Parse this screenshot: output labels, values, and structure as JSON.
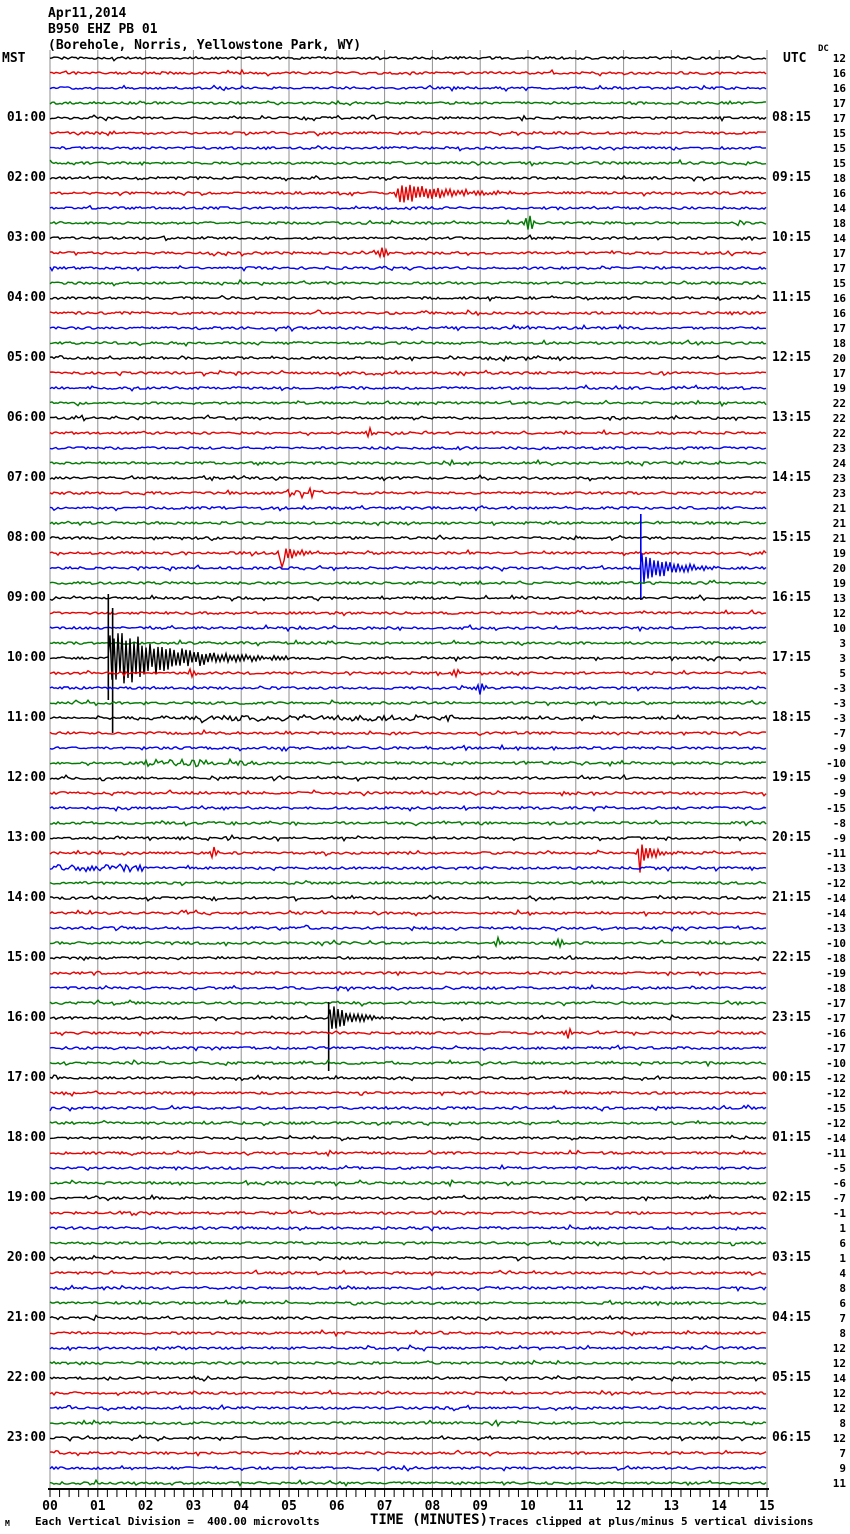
{
  "header": {
    "date": "Apr11,2014",
    "station": "B950 EHZ PB 01",
    "location": "(Borehole, Norris, Yellowstone Park, WY)"
  },
  "axes": {
    "left_tz": "MST",
    "right_tz": "UTC",
    "dc_header": "DC",
    "x_title": "TIME (MINUTES)",
    "x_ticks": [
      "00",
      "01",
      "02",
      "03",
      "04",
      "05",
      "06",
      "07",
      "08",
      "09",
      "10",
      "11",
      "12",
      "13",
      "14",
      "15"
    ]
  },
  "footer": {
    "corner_mark": "M",
    "scale_note": "Each Vertical Division =  400.00 microvolts",
    "clip_note": "Traces clipped at plus/minus 5 vertical divisions"
  },
  "chart_data": {
    "type": "line",
    "subtype": "helicorder-seismogram",
    "title": "B950 EHZ PB 01 (Borehole, Norris, Yellowstone Park, WY) Apr11,2014",
    "xlabel": "TIME (MINUTES)",
    "x_range_minutes": [
      0,
      15
    ],
    "rows": 96,
    "minutes_per_row": 15,
    "row_start_hour_mst": 0,
    "colors_cycle": [
      "#000000",
      "#e60000",
      "#0000ee",
      "#007a00"
    ],
    "grid_color": "#8f8f8f",
    "clip_divisions": 5,
    "left_labels": [
      "01:00",
      "02:00",
      "03:00",
      "04:00",
      "05:00",
      "06:00",
      "07:00",
      "08:00",
      "09:00",
      "10:00",
      "11:00",
      "12:00",
      "13:00",
      "14:00",
      "15:00",
      "16:00",
      "17:00",
      "18:00",
      "19:00",
      "20:00",
      "21:00",
      "22:00",
      "23:00"
    ],
    "right_labels": [
      "08:15",
      "09:15",
      "10:15",
      "11:15",
      "12:15",
      "13:15",
      "14:15",
      "15:15",
      "16:15",
      "17:15",
      "18:15",
      "19:15",
      "20:15",
      "21:15",
      "22:15",
      "23:15",
      "00:15",
      "01:15",
      "02:15",
      "03:15",
      "04:15",
      "05:15",
      "06:15"
    ],
    "dc_values": [
      12,
      16,
      16,
      17,
      17,
      15,
      15,
      15,
      18,
      16,
      14,
      18,
      14,
      17,
      17,
      15,
      16,
      16,
      17,
      18,
      20,
      17,
      19,
      22,
      22,
      22,
      23,
      24,
      23,
      23,
      21,
      21,
      21,
      19,
      20,
      19,
      13,
      12,
      10,
      3,
      3,
      5,
      -3,
      -3,
      -3,
      -7,
      -9,
      -10,
      -9,
      -9,
      -15,
      -8,
      -9,
      -11,
      -13,
      -12,
      -14,
      -14,
      -13,
      -10,
      -18,
      -19,
      -18,
      -17,
      -17,
      -16,
      -17,
      -10,
      -12,
      -12,
      -15,
      -12,
      -14,
      -11,
      -5,
      -6,
      -7,
      -1,
      1,
      6,
      1,
      4,
      8,
      6,
      7,
      8,
      12,
      12,
      14,
      12,
      12,
      8,
      12,
      7,
      9,
      11
    ],
    "events": [
      {
        "row": 9,
        "kind": "burst",
        "m": 7.27,
        "amp": 13,
        "coda": 0.9,
        "downspike": 7
      },
      {
        "row": 11,
        "kind": "spike",
        "m": 10.02,
        "amp": 11
      },
      {
        "row": 13,
        "kind": "spike",
        "m": 6.95,
        "amp": 7
      },
      {
        "row": 25,
        "kind": "spike",
        "m": 6.68,
        "amp": 6
      },
      {
        "row": 29,
        "kind": "noise",
        "m0": 4.9,
        "m1": 5.9,
        "amp": 3.5
      },
      {
        "row": 29,
        "kind": "spike",
        "m": 5.45,
        "amp": 5
      },
      {
        "row": 33,
        "kind": "burst",
        "m": 4.82,
        "amp": 9,
        "coda": 0.35,
        "downspike": 22
      },
      {
        "row": 34,
        "kind": "quake",
        "m": 12.36,
        "blobw": 0.28,
        "blobamp": 14,
        "coda": 0.5,
        "lines": [
          {
            "dm": 0,
            "up": 54,
            "down": 32
          }
        ]
      },
      {
        "row": 40,
        "kind": "quake",
        "m": 1.22,
        "blobw": 0.5,
        "blobamp": 26,
        "coda": 1.1,
        "lines": [
          {
            "dm": 0,
            "up": 64,
            "down": 42
          },
          {
            "dm": 0.09,
            "up": 50,
            "down": 75
          }
        ]
      },
      {
        "row": 41,
        "kind": "spike",
        "m": 2.95,
        "amp": 5
      },
      {
        "row": 41,
        "kind": "spike",
        "m": 8.5,
        "amp": 5
      },
      {
        "row": 42,
        "kind": "spike",
        "m": 9.0,
        "amp": 6,
        "w": 4
      },
      {
        "row": 44,
        "kind": "noise",
        "m0": 2.0,
        "m1": 8.5,
        "amp": 2.3
      },
      {
        "row": 47,
        "kind": "noise",
        "m0": 1.8,
        "m1": 4.4,
        "amp": 3
      },
      {
        "row": 53,
        "kind": "spike",
        "m": 3.42,
        "amp": 6
      },
      {
        "row": 53,
        "kind": "burst",
        "m": 12.33,
        "amp": 12,
        "coda": 0.3,
        "downspike": 10
      },
      {
        "row": 54,
        "kind": "noise",
        "m0": 0,
        "m1": 2.0,
        "amp": 3
      },
      {
        "row": 59,
        "kind": "spike",
        "m": 9.35,
        "amp": 5
      },
      {
        "row": 59,
        "kind": "spike",
        "m": 10.65,
        "amp": 5
      },
      {
        "row": 64,
        "kind": "quake",
        "m": 5.83,
        "blobw": 0.18,
        "blobamp": 12,
        "coda": 0.4,
        "lines": [
          {
            "dm": 0,
            "up": 16,
            "down": 53
          }
        ]
      },
      {
        "row": 65,
        "kind": "spike",
        "m": 10.85,
        "amp": 6
      }
    ]
  }
}
